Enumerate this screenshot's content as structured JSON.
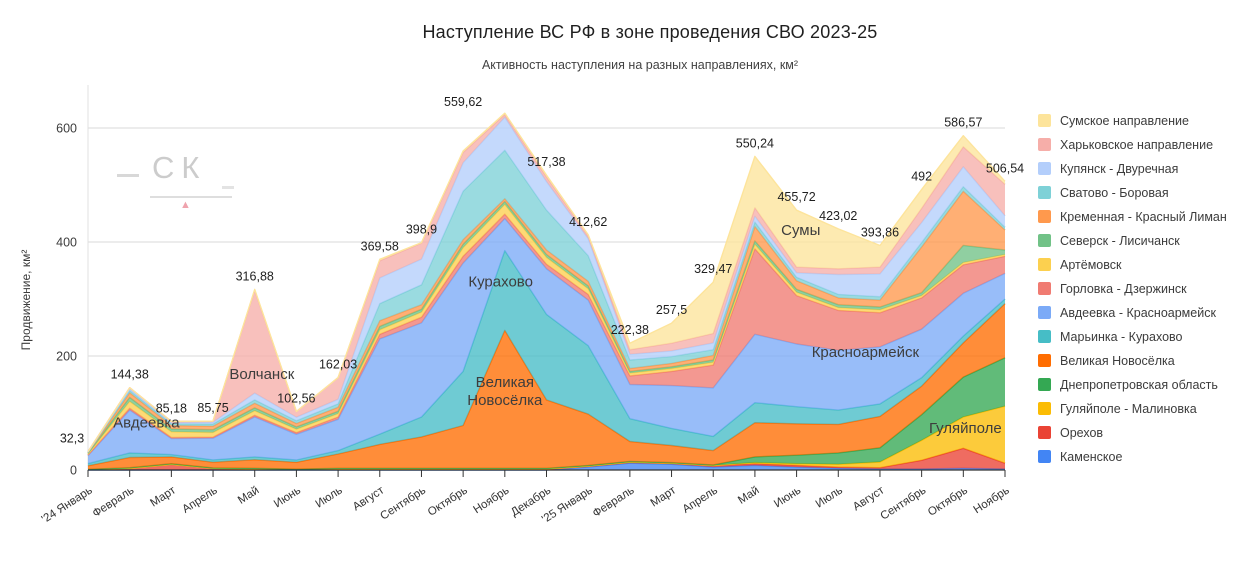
{
  "header": {
    "title": "Наступление ВС РФ в зоне проведения СВО 2023-25",
    "subtitle": "Активность наступления на разных направлениях, км²"
  },
  "watermark": {
    "text": "СК",
    "triangle_color": "#efa3ad",
    "text_color": "#cccccc"
  },
  "chart_data": {
    "type": "area",
    "stacked": true,
    "title": "Наступление ВС РФ в зоне проведения СВО 2023-25",
    "subtitle": "Активность наступления на разных направлениях, км²",
    "xlabel": "",
    "ylabel": "Продвижение, км²",
    "yticks": [
      0,
      200,
      400,
      600
    ],
    "ylim": [
      0,
      650
    ],
    "grid": true,
    "legend_position": "right",
    "stacking_note": "stack bottom-to-top is reverse of legend order",
    "categories": [
      "'24 Январь",
      "Февраль",
      "Март",
      "Апрель",
      "Май",
      "Июнь",
      "Июль",
      "Август",
      "Сентябрь",
      "Октябрь",
      "Ноябрь",
      "Декабрь",
      "'25 Январь",
      "Февраль",
      "Март",
      "Апрель",
      "Май",
      "Июнь",
      "Июль",
      "Август",
      "Сентябрь",
      "Октябрь",
      "Ноябрь"
    ],
    "totals_labels": [
      "32,3",
      "144,38",
      "85,18",
      "85,75",
      "316,88",
      "102,56",
      "162,03",
      "369,58",
      "398,9",
      "559,62",
      null,
      "517,38",
      "412,62",
      "222,38",
      "257,5",
      "329,47",
      "550,24",
      "455,72",
      "423,02",
      "393,86",
      "492",
      "586,57",
      "506,54"
    ],
    "series": [
      {
        "name": "Сумское направление",
        "color": "#FDE49B",
        "values": [
          0,
          0,
          0,
          0,
          1.88,
          0,
          0.03,
          2.58,
          0.9,
          2.62,
          2,
          3.38,
          1.62,
          11.38,
          35,
          90,
          90.24,
          99.72,
          70.02,
          37.86,
          33,
          19.57,
          5.54
        ]
      },
      {
        "name": "Харьковское направление",
        "color": "#F6AEA9",
        "values": [
          0.5,
          2,
          2.18,
          2,
          180,
          10,
          38,
          30,
          28,
          18,
          5,
          8,
          5,
          8,
          13.5,
          16.47,
          15,
          10,
          10,
          12,
          25,
          35,
          55
        ]
      },
      {
        "name": "Купянск - Двуречная",
        "color": "#B3CEFB",
        "values": [
          0.5,
          3,
          2,
          3,
          12,
          6,
          8,
          45,
          45,
          50,
          58,
          50,
          30,
          10,
          10,
          12,
          10,
          8,
          35,
          40,
          35,
          35,
          20
        ]
      },
      {
        "name": "Сватово - Боровая",
        "color": "#7ED1D7",
        "values": [
          0.5,
          4,
          3,
          4,
          6,
          5,
          6,
          30,
          35,
          85,
          85,
          70,
          45,
          15,
          12,
          10,
          8,
          6,
          6,
          6,
          8,
          8,
          5
        ]
      },
      {
        "name": "Кременная - Красный Лиман",
        "color": "#FF994D",
        "values": [
          1.5,
          8,
          6,
          6,
          8,
          6,
          7,
          10,
          8,
          8,
          5,
          8,
          8,
          5,
          6,
          8,
          25,
          15,
          12,
          12,
          80,
          95,
          35
        ]
      },
      {
        "name": "Северск - Лисичанск",
        "color": "#71C287",
        "values": [
          1,
          7,
          5,
          5,
          5,
          4,
          4,
          6,
          5,
          6,
          5,
          5,
          5,
          3,
          3,
          4,
          6,
          5,
          5,
          5,
          5,
          30,
          8
        ]
      },
      {
        "name": "Артёмовск",
        "color": "#FCD04F",
        "values": [
          2,
          12,
          10,
          8,
          8,
          6,
          6,
          8,
          9,
          15,
          17,
          12,
          10,
          5,
          5,
          5,
          8,
          6,
          5,
          5,
          4,
          4,
          3
        ]
      },
      {
        "name": "Горловка - Дзержинск",
        "color": "#F07B72",
        "values": [
          1,
          3.38,
          2,
          2,
          3,
          3,
          4,
          8,
          10,
          12,
          8,
          8,
          10,
          15,
          25,
          40,
          150,
          85,
          70,
          60,
          55,
          50,
          30
        ]
      },
      {
        "name": "Авдеевка - Красноармейск",
        "color": "#7BAAF7",
        "values": [
          14,
          75,
          28,
          38,
          70,
          45,
          55,
          167,
          165,
          190,
          56,
          80,
          80,
          60,
          75,
          85,
          120,
          110,
          105,
          100,
          85,
          75,
          45
        ]
      },
      {
        "name": "Марьинка - Курахово",
        "color": "#46BDC6",
        "values": [
          4,
          8,
          4,
          4,
          5,
          4,
          6,
          18,
          35,
          95,
          140,
          150,
          120,
          40,
          30,
          25,
          35,
          30,
          25,
          22,
          15,
          12,
          8
        ]
      },
      {
        "name": "Великая Новосёлка",
        "color": "#FF6D01",
        "values": [
          6,
          18,
          12,
          10,
          15,
          12,
          25,
          42,
          55,
          75,
          242,
          120,
          90,
          35,
          30,
          25,
          60,
          55,
          50,
          55,
          50,
          60,
          95
        ]
      },
      {
        "name": "Днепропетровская область",
        "color": "#34A853",
        "values": [
          0.3,
          1,
          1,
          0.75,
          1,
          0.56,
          1,
          1,
          1,
          1,
          1,
          1,
          1,
          1,
          1,
          1,
          10,
          15,
          20,
          25,
          45,
          70,
          85
        ]
      },
      {
        "name": "Гуляйполе - Малиновка",
        "color": "#FBBC04",
        "values": [
          0,
          0,
          0,
          0,
          0,
          0,
          0,
          0,
          0,
          0,
          0,
          0,
          0,
          0,
          0,
          0,
          2,
          3,
          5,
          10,
          35,
          55,
          100
        ]
      },
      {
        "name": "Орехов",
        "color": "#EA4335",
        "values": [
          1,
          3,
          10,
          3,
          2,
          1,
          2,
          2,
          2,
          2,
          2,
          2,
          2,
          2,
          2,
          3,
          3,
          3,
          2,
          2,
          15,
          35,
          10
        ]
      },
      {
        "name": "Каменское",
        "color": "#4285F4",
        "values": [
          0,
          0,
          0,
          0,
          0,
          0,
          0,
          0,
          0,
          0,
          0,
          0,
          5,
          12,
          10,
          5,
          8,
          5,
          3,
          2,
          2,
          3,
          2
        ]
      }
    ],
    "annotations": [
      {
        "lines": [
          "Авдеевка"
        ],
        "x": 1.4,
        "y": 75
      },
      {
        "lines": [
          "Волчанск"
        ],
        "x": 4.17,
        "y": 160
      },
      {
        "lines": [
          "Курахово"
        ],
        "x": 9.9,
        "y": 322
      },
      {
        "lines": [
          "Великая",
          "Новосёлка"
        ],
        "x": 10.0,
        "y": 130
      },
      {
        "lines": [
          "Сумы"
        ],
        "x": 17.1,
        "y": 412
      },
      {
        "lines": [
          "Красноармейск"
        ],
        "x": 18.65,
        "y": 198
      },
      {
        "lines": [
          "Гуляйполе"
        ],
        "x": 21.05,
        "y": 65
      }
    ]
  }
}
